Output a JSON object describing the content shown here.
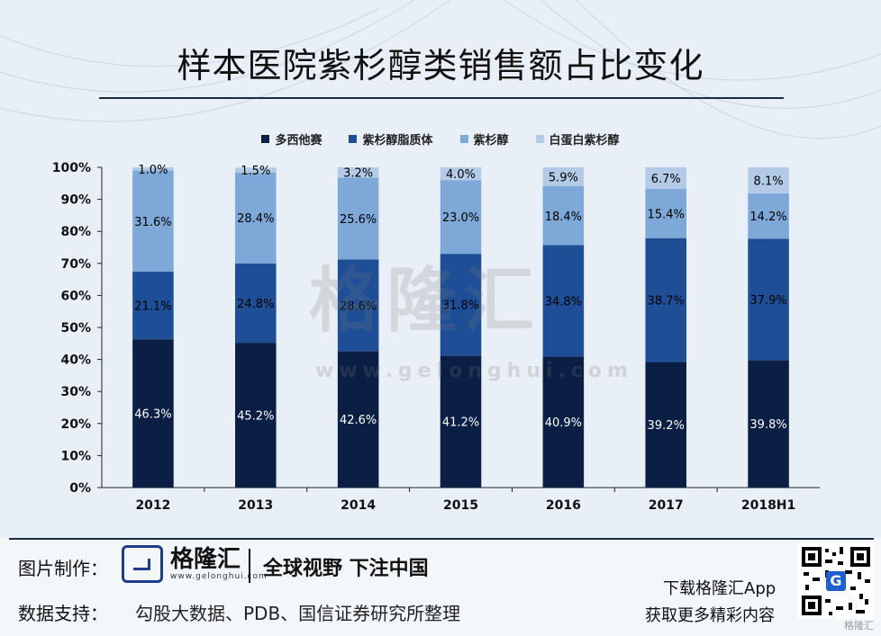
{
  "title": "样本医院紫杉醇类销售额占比变化",
  "watermark": {
    "text": "格隆汇",
    "url": "www.gelonghui.com"
  },
  "chart_data": {
    "type": "bar",
    "stacked": true,
    "categories": [
      "2012",
      "2013",
      "2014",
      "2015",
      "2016",
      "2017",
      "2018H1"
    ],
    "yticks": [
      "0%",
      "10%",
      "20%",
      "30%",
      "40%",
      "50%",
      "60%",
      "70%",
      "80%",
      "90%",
      "100%"
    ],
    "ylim": [
      0,
      100
    ],
    "legend_position": "top",
    "series": [
      {
        "name": "多西他赛",
        "color": "#0b1f45",
        "label_color": "#ffffff",
        "values": [
          46.3,
          45.2,
          42.6,
          41.2,
          40.9,
          39.2,
          39.8
        ],
        "labels": [
          "46.3%",
          "45.2%",
          "42.6%",
          "41.2%",
          "40.9%",
          "39.2%",
          "39.8%"
        ]
      },
      {
        "name": "紫杉醇脂质体",
        "color": "#1e4f96",
        "label_color": "#000000",
        "values": [
          21.1,
          24.8,
          28.6,
          31.8,
          34.8,
          38.7,
          37.9
        ],
        "labels": [
          "21.1%",
          "24.8%",
          "28.6%",
          "31.8%",
          "34.8%",
          "38.7%",
          "37.9%"
        ]
      },
      {
        "name": "紫杉醇",
        "color": "#7ea8d8",
        "label_color": "#000000",
        "values": [
          31.6,
          28.4,
          25.6,
          23.0,
          18.4,
          15.4,
          14.2
        ],
        "labels": [
          "31.6%",
          "28.4%",
          "25.6%",
          "23.0%",
          "18.4%",
          "15.4%",
          "14.2%"
        ]
      },
      {
        "name": "白蛋白紫杉醇",
        "color": "#b3cbe6",
        "label_color": "#000000",
        "values": [
          1.0,
          1.5,
          3.2,
          4.0,
          5.9,
          6.7,
          8.1
        ],
        "labels": [
          "1.0%",
          "1.5%",
          "3.2%",
          "4.0%",
          "5.9%",
          "6.7%",
          "8.1%"
        ]
      }
    ]
  },
  "footer": {
    "made_label": "图片制作：",
    "logo_cn": "格隆汇",
    "logo_url": "www.gelonghui.com",
    "slogan": "全球视野 下注中国",
    "support_label": "数据支持：",
    "source": "勾股大数据、PDB、国信证券研究所整理",
    "download_line1": "下载格隆汇App",
    "download_line2": "获取更多精彩内容",
    "corner_mark": "格隆汇"
  }
}
